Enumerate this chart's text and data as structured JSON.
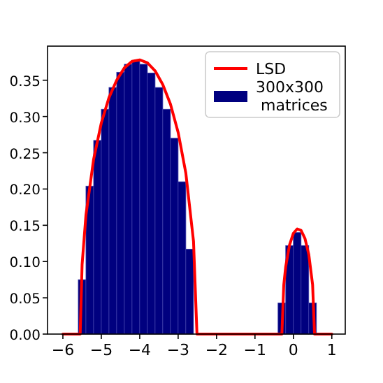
{
  "chart_data": {
    "type": "histogram",
    "series": [
      {
        "name": "300x300\n matrices",
        "color": "#00007f",
        "bins": [
          -5.6,
          -5.4,
          -5.2,
          -5.0,
          -4.8,
          -4.6,
          -4.4,
          -4.2,
          -4.0,
          -3.8,
          -3.6,
          -3.4,
          -3.2,
          -3.0,
          -2.8,
          -2.6,
          -2.4,
          -2.2,
          -2.0,
          -1.8,
          -1.6,
          -1.4,
          -1.2,
          -1.0,
          -0.8,
          -0.6,
          -0.4,
          -0.2,
          0.0,
          0.2,
          0.4,
          0.6
        ],
        "values": [
          0.075,
          0.204,
          0.267,
          0.31,
          0.34,
          0.361,
          0.372,
          0.376,
          0.372,
          0.36,
          0.34,
          0.31,
          0.27,
          0.21,
          0.117,
          0,
          0,
          0,
          0,
          0,
          0,
          0,
          0,
          0,
          0,
          0,
          0.043,
          0.122,
          0.14,
          0.122,
          0.043
        ]
      },
      {
        "type": "line",
        "name": "LSD",
        "color": "#ff0000",
        "x": [
          -6,
          -5.55,
          -5.5,
          -5.4,
          -5.2,
          -5.0,
          -4.8,
          -4.6,
          -4.4,
          -4.2,
          -4.0,
          -3.8,
          -3.6,
          -3.4,
          -3.2,
          -3.0,
          -2.8,
          -2.6,
          -2.51,
          -0.3,
          -0.25,
          -0.2,
          -0.1,
          0,
          0.1,
          0.2,
          0.3,
          0.4,
          0.5,
          0.55,
          1
        ],
        "values": [
          0,
          0,
          0.096,
          0.164,
          0.241,
          0.291,
          0.326,
          0.35,
          0.367,
          0.376,
          0.378,
          0.374,
          0.363,
          0.344,
          0.317,
          0.278,
          0.222,
          0.128,
          0,
          0,
          0.068,
          0.093,
          0.123,
          0.139,
          0.145,
          0.143,
          0.132,
          0.11,
          0.068,
          0,
          0
        ]
      }
    ],
    "xlim": [
      -6.4,
      1.35
    ],
    "ylim": [
      0,
      0.397
    ],
    "xticks": [
      {
        "value": -6,
        "label": "−6"
      },
      {
        "value": -5,
        "label": "−5"
      },
      {
        "value": -4,
        "label": "−4"
      },
      {
        "value": -3,
        "label": "−3"
      },
      {
        "value": -2,
        "label": "−2"
      },
      {
        "value": -1,
        "label": "−1"
      },
      0,
      1
    ],
    "yticks": [
      {
        "value": 0,
        "label": "0.00"
      },
      {
        "value": 0.05,
        "label": "0.05"
      },
      {
        "value": 0.1,
        "label": "0.10"
      },
      {
        "value": 0.15,
        "label": "0.15"
      },
      {
        "value": 0.2,
        "label": "0.20"
      },
      {
        "value": 0.25,
        "label": "0.25"
      },
      {
        "value": 0.3,
        "label": "0.30"
      },
      {
        "value": 0.35,
        "label": "0.35"
      }
    ],
    "legend": "top right"
  }
}
